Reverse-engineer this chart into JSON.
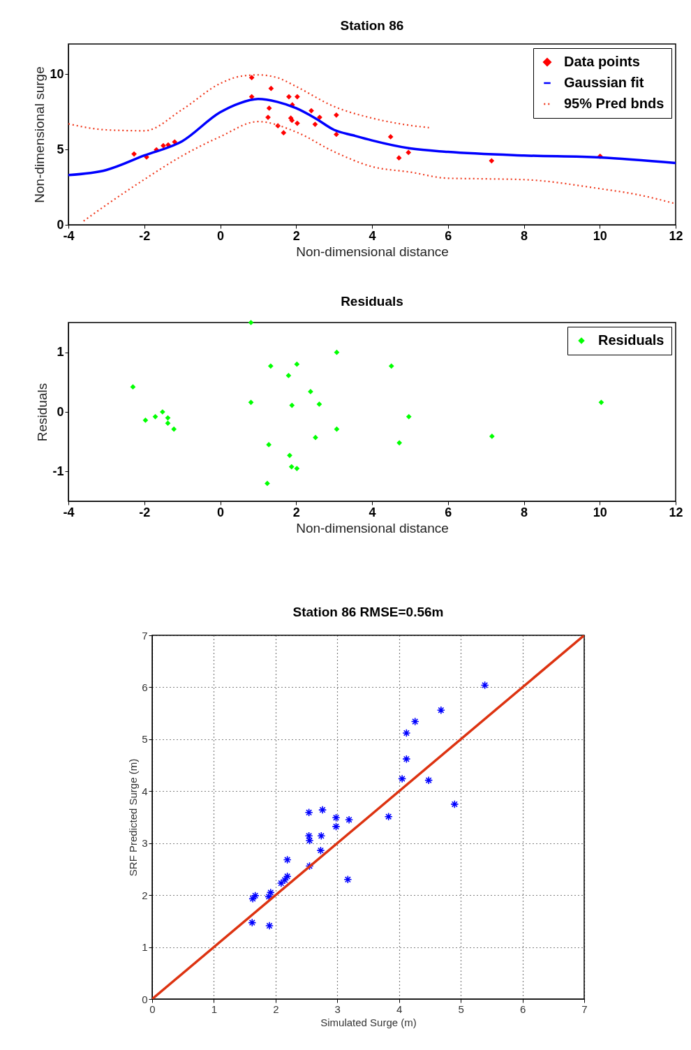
{
  "chart_data": [
    {
      "type": "scatter",
      "title": "Station 86",
      "xlabel": "Non-dimensional distance",
      "ylabel": "Non-dimensional surge",
      "xlim": [
        -4,
        12
      ],
      "xticks": [
        -4,
        -2,
        0,
        2,
        4,
        6,
        8,
        10,
        12
      ],
      "ylim": [
        0,
        12
      ],
      "yticks": [
        0,
        5,
        10
      ],
      "legend": "top right",
      "series": [
        {
          "name": "Data points",
          "color": "#ff0000",
          "marker": "diamond",
          "x": [
            -2.27,
            -1.94,
            -1.68,
            -1.5,
            -1.37,
            -1.2,
            0.83,
            0.83,
            1.34,
            1.29,
            1.26,
            1.52,
            1.67,
            1.81,
            2.03,
            1.9,
            1.86,
            1.89,
            2.03,
            2.4,
            2.62,
            2.5,
            3.06,
            3.06,
            4.49,
            4.71,
            4.96,
            7.15,
            10.01
          ],
          "values": [
            4.7,
            4.5,
            4.98,
            5.25,
            5.3,
            5.5,
            9.77,
            8.5,
            9.05,
            7.74,
            7.13,
            6.57,
            6.11,
            8.5,
            8.5,
            7.96,
            7.08,
            6.93,
            6.74,
            7.57,
            7.13,
            6.67,
            7.28,
            6.0,
            5.84,
            4.44,
            4.8,
            4.25,
            4.55
          ]
        },
        {
          "name": "Gaussian fit",
          "type": "line",
          "color": "#0000ff",
          "line_style": "solid",
          "marker": "none",
          "x": [
            -4,
            -3,
            -2,
            -1,
            0,
            0.5,
            1,
            1.5,
            2,
            2.5,
            3,
            3.5,
            4,
            5,
            6,
            8,
            10,
            12
          ],
          "values": [
            3.3,
            3.64,
            4.6,
            5.55,
            7.47,
            8.06,
            8.35,
            8.16,
            7.74,
            7.08,
            6.3,
            5.94,
            5.6,
            5.07,
            4.84,
            4.6,
            4.47,
            4.1
          ]
        },
        {
          "name": "95% Pred bnds",
          "type": "line",
          "color": "#f03a1e",
          "line_style": "dotted",
          "marker": "none",
          "x": [
            -4,
            -3,
            -2,
            -1,
            0,
            0.5,
            1,
            1.5,
            2,
            3,
            4,
            5,
            5.5
          ],
          "values": [
            6.7,
            6.3,
            6.24,
            7.65,
            9.38,
            9.84,
            9.95,
            9.77,
            9.18,
            7.85,
            7.08,
            6.6,
            6.45
          ]
        },
        {
          "type": "line",
          "color": "#f03a1e",
          "line_style": "dotted",
          "marker": "none",
          "x": [
            -3.6,
            -3,
            -2,
            -1,
            0,
            1,
            2,
            3,
            4,
            5,
            6,
            7,
            8,
            10,
            11,
            12
          ],
          "values": [
            0.25,
            1.32,
            3.01,
            4.58,
            5.85,
            6.85,
            6.16,
            4.85,
            3.86,
            3.5,
            3.09,
            3.05,
            3.0,
            2.4,
            2.0,
            1.4
          ]
        }
      ]
    },
    {
      "type": "scatter",
      "title": "Residuals",
      "xlabel": "Non-dimensional distance",
      "ylabel": "Residuals",
      "xlim": [
        -4,
        12
      ],
      "xticks": [
        -4,
        -2,
        0,
        2,
        4,
        6,
        8,
        10,
        12
      ],
      "ylim": [
        -1.5,
        1.5
      ],
      "yticks": [
        -1,
        0,
        1
      ],
      "legend": "top right",
      "series": [
        {
          "name": "Residuals",
          "color": "#00ff00",
          "marker": "diamond",
          "x": [
            -2.3,
            -1.97,
            -1.71,
            -1.52,
            -1.38,
            -1.38,
            -1.22,
            0.81,
            0.81,
            1.28,
            1.24,
            1.33,
            1.8,
            1.89,
            1.83,
            1.88,
            2.02,
            2.02,
            2.38,
            2.51,
            2.61,
            3.07,
            3.07,
            4.51,
            4.72,
            4.97,
            7.16,
            10.04
          ],
          "values": [
            0.42,
            -0.14,
            -0.08,
            0,
            -0.1,
            -0.19,
            -0.29,
            1.5,
            0.16,
            -0.55,
            -1.2,
            0.77,
            0.61,
            0.11,
            -0.73,
            -0.92,
            -0.95,
            0.8,
            0.34,
            -0.43,
            0.13,
            1.0,
            -0.29,
            0.77,
            -0.52,
            -0.08,
            -0.41,
            0.16
          ]
        }
      ]
    },
    {
      "type": "scatter",
      "title": "Station 86  RMSE=0.56m",
      "xlabel": "Simulated Surge (m)",
      "ylabel": "SRF Predicted Surge (m)",
      "xlim": [
        0,
        7
      ],
      "xticks": [
        0,
        1,
        2,
        3,
        4,
        5,
        6,
        7
      ],
      "ylim": [
        0,
        7
      ],
      "yticks": [
        0,
        1,
        2,
        3,
        4,
        5,
        6,
        7
      ],
      "grid": true,
      "series": [
        {
          "color": "#0000ff",
          "marker": "cross",
          "x": [
            5.39,
            4.68,
            4.26,
            4.12,
            4.12,
            4.05,
            4.48,
            4.9,
            3.83,
            2.54,
            2.76,
            2.98,
            2.98,
            3.19,
            2.54,
            2.55,
            2.74,
            2.73,
            2.55,
            2.19,
            2.19,
            2.09,
            2.15,
            3.17,
            1.67,
            1.63,
            1.92,
            1.89,
            1.62,
            1.9
          ],
          "values": [
            6.04,
            5.56,
            5.34,
            5.12,
            4.62,
            4.24,
            4.21,
            3.75,
            3.51,
            3.59,
            3.64,
            3.49,
            3.32,
            3.45,
            3.14,
            3.05,
            3.14,
            2.86,
            2.56,
            2.68,
            2.36,
            2.23,
            2.29,
            2.3,
            1.99,
            1.93,
            2.05,
            1.97,
            1.47,
            1.41
          ]
        },
        {
          "type": "line",
          "color": "#dd3311",
          "line_style": "solid",
          "marker": "none",
          "x": [
            0,
            7
          ],
          "values": [
            0,
            7
          ]
        }
      ]
    }
  ]
}
